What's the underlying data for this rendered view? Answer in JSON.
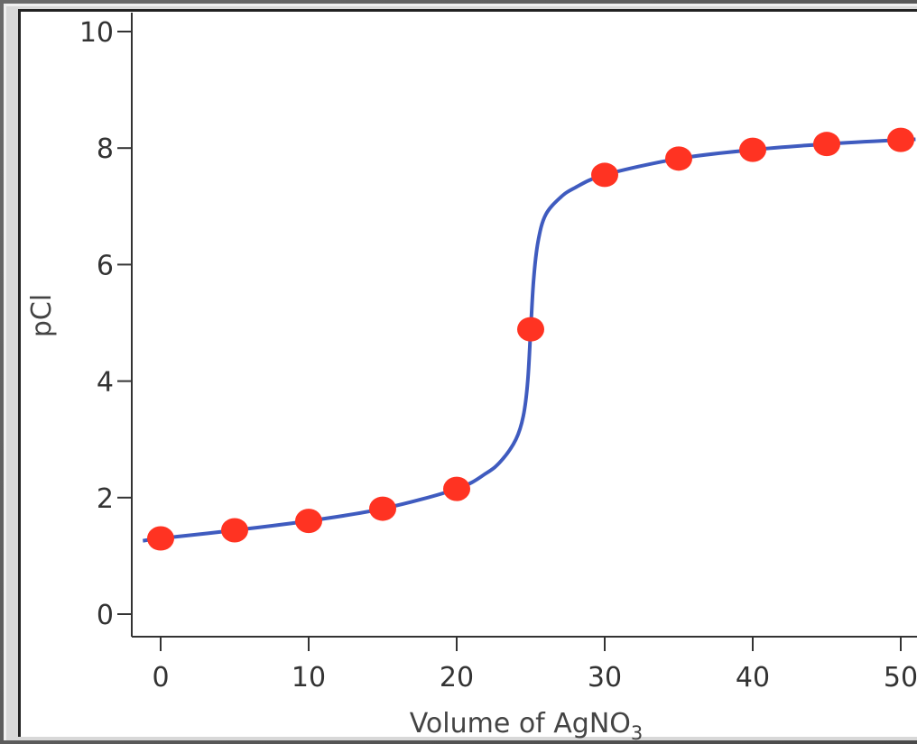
{
  "chart_data": {
    "type": "line",
    "title": "",
    "xlabel": "Volume of AgNO",
    "xlabel_subscript": "3",
    "ylabel": "pCl",
    "xlim": [
      -2,
      52
    ],
    "ylim": [
      -0.4,
      10.35
    ],
    "x_ticks": [
      0,
      10,
      20,
      30,
      40,
      50
    ],
    "x_tick_labels": [
      "0",
      "10",
      "20",
      "30",
      "40",
      "50"
    ],
    "y_ticks": [
      0,
      2,
      4,
      6,
      8,
      10
    ],
    "y_tick_labels": [
      "0",
      "2",
      "4",
      "6",
      "8",
      "10"
    ],
    "grid": false,
    "points": {
      "x": [
        0,
        5,
        10,
        15,
        20,
        25,
        30,
        35,
        40,
        45,
        50
      ],
      "y": [
        1.3,
        1.44,
        1.6,
        1.81,
        2.15,
        4.89,
        7.54,
        7.82,
        7.97,
        8.07,
        8.14
      ]
    },
    "curve": {
      "x": [
        -1.2,
        0,
        5,
        10,
        15,
        20,
        22,
        23,
        24,
        24.5,
        24.8,
        25,
        25.2,
        25.5,
        26,
        27,
        28,
        30,
        35,
        40,
        45,
        50,
        51
      ],
      "y": [
        1.26,
        1.3,
        1.44,
        1.6,
        1.81,
        2.15,
        2.42,
        2.63,
        3.0,
        3.4,
        4.0,
        4.89,
        5.75,
        6.4,
        6.85,
        7.15,
        7.32,
        7.54,
        7.82,
        7.97,
        8.07,
        8.14,
        8.15
      ]
    },
    "colors": {
      "curve": "#3f5bbf",
      "points": "#ff3322",
      "axis": "#333333"
    }
  }
}
